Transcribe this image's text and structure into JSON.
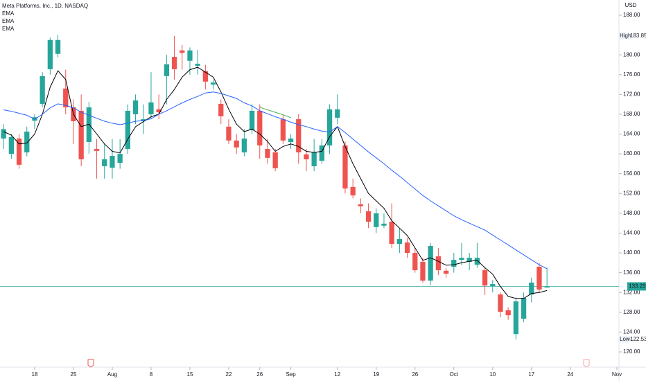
{
  "chart_data": {
    "type": "candlestick",
    "title": "Meta Platforms, Inc., 1D, NASDAQ",
    "currency": "USD",
    "up_color": "#26a69a",
    "down_color": "#ef5350",
    "open": [
      163.1,
      160.0,
      163.1,
      160.3,
      166.7,
      170.1,
      177.1,
      180.2,
      173.2,
      169.4,
      168.7,
      162.4,
      161.0,
      157.5,
      157.2,
      158.2,
      161.0,
      168.0,
      166.6,
      168.0,
      169.0,
      175.7,
      179.6,
      180.9,
      178.8,
      177.8,
      176.7,
      174.0,
      170.1,
      165.5,
      162.7,
      160.3,
      164.8,
      168.7,
      161.0,
      160.3,
      167.0,
      162.4,
      167.0,
      159.9,
      157.5,
      158.6,
      161.7,
      167.3,
      161.7,
      153.3,
      149.8,
      148.4,
      145.2,
      145.5,
      146.3,
      141.8,
      142.1,
      140.0,
      138.2,
      134.4,
      139.3,
      136.4,
      137.2,
      138.6,
      138.2,
      137.6,
      136.5,
      133.3,
      131.6,
      128.4,
      123.6,
      126.7,
      131.6,
      137.2,
      133.0
    ],
    "high": [
      166.0,
      164.0,
      164.0,
      165.5,
      168.0,
      176.5,
      183.5,
      184.0,
      177.0,
      171.0,
      172.0,
      170.5,
      163.0,
      162.0,
      163.0,
      163.0,
      170.0,
      172.0,
      170.0,
      176.5,
      172.0,
      180.0,
      183.85,
      182.0,
      181.5,
      181.0,
      178.0,
      175.0,
      171.0,
      167.0,
      164.0,
      165.0,
      170.0,
      170.0,
      163.0,
      161.0,
      168.0,
      164.0,
      168.0,
      161.0,
      163.0,
      163.0,
      170.0,
      172.0,
      162.5,
      155.0,
      151.0,
      150.0,
      149.0,
      148.0,
      150.0,
      145.0,
      143.0,
      141.0,
      139.0,
      142.0,
      141.0,
      137.0,
      140.0,
      142.0,
      140.0,
      142.0,
      137.0,
      134.5,
      132.0,
      129.0,
      131.0,
      132.0,
      135.0,
      137.9,
      137.0
    ],
    "low": [
      161.0,
      159.0,
      157.0,
      159.5,
      165.0,
      169.5,
      176.0,
      179.5,
      168.0,
      162.0,
      157.5,
      160.0,
      155.0,
      155.0,
      155.0,
      157.0,
      160.0,
      166.0,
      164.0,
      167.0,
      167.0,
      170.0,
      175.0,
      177.0,
      176.0,
      176.0,
      173.0,
      173.0,
      166.0,
      162.0,
      160.0,
      159.5,
      164.0,
      159.0,
      158.0,
      156.5,
      162.0,
      161.0,
      158.0,
      156.5,
      156.5,
      158.0,
      160.0,
      166.0,
      152.0,
      151.0,
      148.0,
      145.0,
      144.0,
      145.0,
      141.0,
      140.0,
      139.0,
      136.0,
      134.0,
      133.5,
      135.5,
      135.0,
      136.0,
      137.5,
      136.5,
      137.0,
      131.5,
      132.0,
      127.0,
      126.5,
      122.53,
      126.0,
      130.0,
      132.0,
      133.0
    ],
    "close": [
      165.0,
      163.4,
      157.8,
      164.5,
      167.4,
      175.7,
      183.0,
      183.0,
      169.4,
      166.6,
      158.9,
      169.4,
      160.6,
      158.9,
      159.6,
      160.0,
      168.7,
      170.8,
      167.0,
      170.4,
      168.4,
      178.1,
      177.1,
      180.4,
      180.9,
      178.2,
      174.6,
      174.4,
      167.6,
      162.7,
      161.3,
      163.1,
      168.7,
      161.7,
      159.2,
      157.1,
      162.7,
      163.1,
      160.3,
      158.9,
      160.3,
      161.7,
      169.0,
      169.0,
      153.0,
      151.6,
      149.4,
      146.3,
      148.0,
      145.9,
      141.8,
      142.8,
      140.0,
      136.5,
      134.4,
      141.4,
      136.5,
      135.8,
      138.6,
      139.0,
      139.0,
      139.0,
      133.4,
      133.7,
      128.1,
      127.4,
      130.2,
      130.9,
      134.0,
      132.6,
      133.23
    ],
    "series": [
      {
        "name": "EMA",
        "color": "#000000",
        "values": [
          164.5,
          163.8,
          162.0,
          162.2,
          164.0,
          168.0,
          173.5,
          176.8,
          175.0,
          168.0,
          165.5,
          166.0,
          164.0,
          162.0,
          160.5,
          160.2,
          163.0,
          165.5,
          166.5,
          167.5,
          168.0,
          171.0,
          173.0,
          175.5,
          177.0,
          177.5,
          176.5,
          175.5,
          172.5,
          169.0,
          166.0,
          164.5,
          165.0,
          164.0,
          162.5,
          160.5,
          161.5,
          162.0,
          161.5,
          160.5,
          160.3,
          160.5,
          163.5,
          165.5,
          161.5,
          158.0,
          155.0,
          152.0,
          150.5,
          149.0,
          146.5,
          145.0,
          143.5,
          141.0,
          138.5,
          139.0,
          138.3,
          137.5,
          137.6,
          138.0,
          138.3,
          138.5,
          137.0,
          135.7,
          133.2,
          131.2,
          130.8,
          130.8,
          131.8,
          132.0,
          132.4
        ]
      },
      {
        "name": "EMA",
        "color": "#2962ff",
        "values": [
          168.9,
          168.6,
          168.2,
          167.8,
          167.0,
          168.0,
          169.3,
          170.1,
          169.8,
          169.3,
          168.4,
          167.8,
          167.2,
          166.6,
          166.2,
          165.9,
          166.2,
          166.6,
          166.7,
          167.1,
          168.0,
          168.7,
          169.5,
          170.3,
          171.0,
          171.6,
          172.3,
          172.5,
          172.2,
          171.7,
          171.2,
          170.3,
          169.7,
          168.7,
          168.1,
          167.5,
          167.0,
          166.4,
          165.9,
          165.5,
          165.0,
          164.6,
          164.4,
          165.5,
          164.3,
          163.0,
          161.7,
          160.4,
          159.2,
          158.0,
          156.7,
          155.5,
          154.2,
          152.9,
          151.6,
          150.5,
          149.5,
          148.5,
          147.5,
          146.7,
          146.0,
          145.3,
          144.6,
          143.6,
          142.6,
          141.6,
          140.6,
          139.6,
          138.6,
          137.6,
          136.8
        ]
      },
      {
        "name": "EMA",
        "color": "#4caf50",
        "values": [
          null,
          null,
          null,
          null,
          null,
          null,
          null,
          null,
          null,
          null,
          null,
          null,
          null,
          null,
          null,
          null,
          null,
          null,
          null,
          null,
          null,
          null,
          null,
          null,
          null,
          null,
          null,
          null,
          null,
          null,
          null,
          null,
          null,
          169.4,
          168.9,
          168.4,
          167.9,
          167.3,
          null,
          null,
          null,
          null,
          null,
          null,
          null,
          null,
          null,
          null,
          null,
          null,
          null,
          null,
          null,
          null,
          null,
          null,
          null,
          null,
          null,
          null,
          null,
          null,
          null,
          null,
          null,
          null,
          null,
          null,
          null,
          null,
          null
        ]
      }
    ],
    "xlim": [
      -0.46,
      79.27
    ],
    "xticks": [
      {
        "value": 4,
        "label": "18"
      },
      {
        "value": 9,
        "label": "25"
      },
      {
        "value": 14,
        "label": "Aug"
      },
      {
        "value": 19,
        "label": "8"
      },
      {
        "value": 24,
        "label": "15"
      },
      {
        "value": 29,
        "label": "22"
      },
      {
        "value": 33,
        "label": "26"
      },
      {
        "value": 37,
        "label": "Sep"
      },
      {
        "value": 43,
        "label": "12"
      },
      {
        "value": 48,
        "label": "19"
      },
      {
        "value": 53,
        "label": "26"
      },
      {
        "value": 58,
        "label": "Oct"
      },
      {
        "value": 63,
        "label": "10"
      },
      {
        "value": 68,
        "label": "17"
      },
      {
        "value": 73,
        "label": "24"
      },
      {
        "value": 79,
        "label": "Nov"
      }
    ],
    "ylim": [
      116.92,
      191.08
    ],
    "yticks": [
      {
        "value": 188,
        "label": "188.00"
      },
      {
        "value": 180,
        "label": "180.00"
      },
      {
        "value": 176,
        "label": "176.00"
      },
      {
        "value": 172,
        "label": "172.00"
      },
      {
        "value": 168,
        "label": "168.00"
      },
      {
        "value": 164,
        "label": "164.00"
      },
      {
        "value": 160,
        "label": "160.00"
      },
      {
        "value": 156,
        "label": "156.00"
      },
      {
        "value": 152,
        "label": "152.00"
      },
      {
        "value": 148,
        "label": "148.00"
      },
      {
        "value": 144,
        "label": "144.00"
      },
      {
        "value": 140,
        "label": "140.00"
      },
      {
        "value": 136,
        "label": "136.00"
      },
      {
        "value": 132,
        "label": "132.00"
      },
      {
        "value": 128,
        "label": "128.00"
      },
      {
        "value": 124,
        "label": "124.00"
      },
      {
        "value": 120,
        "label": "120.00"
      }
    ],
    "high_marker": {
      "name": "High",
      "value": 183.85,
      "label": "183.85"
    },
    "low_marker": {
      "name": "Low",
      "value": 122.53,
      "label": "122.53"
    },
    "last": {
      "value": 133.23,
      "label": "133.23",
      "color": "#26a69a"
    }
  }
}
